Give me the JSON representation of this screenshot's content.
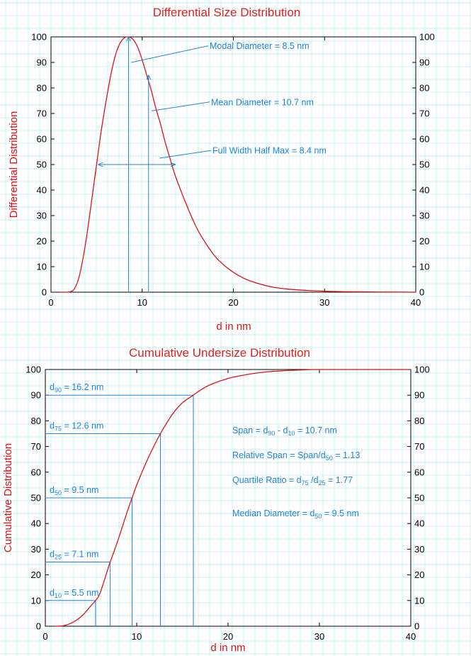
{
  "colors": {
    "curve": "#dd1111",
    "annotation": "#1c84e0",
    "grid": "#b8ecf2",
    "axis": "#000000",
    "title": "#e0201a"
  },
  "chart_data": [
    {
      "type": "line",
      "title_parts": [
        "Differential",
        " Size Distribution"
      ],
      "xlabel": "d in nm",
      "ylabel": "Differential Distribution",
      "xlim": [
        0,
        40
      ],
      "ylim": [
        0,
        100
      ],
      "x_ticks": [
        "0",
        "10",
        "20",
        "30",
        "40"
      ],
      "y_ticks": [
        "0",
        "10",
        "20",
        "30",
        "40",
        "50",
        "60",
        "70",
        "80",
        "90",
        "100"
      ],
      "grid": true,
      "series": [
        {
          "x": [
            1,
            1.5,
            2,
            2.5,
            3,
            3.5,
            4,
            4.5,
            5,
            5.5,
            6,
            6.5,
            7,
            7.5,
            8,
            8.5,
            9,
            9.5,
            10,
            10.5,
            11,
            11.5,
            12,
            12.5,
            13,
            13.5,
            14,
            15,
            16,
            17,
            18,
            19,
            20,
            21,
            22,
            24,
            26,
            28,
            30,
            32,
            35,
            38,
            40
          ],
          "y": [
            0,
            0,
            0.1,
            1,
            5,
            13,
            24,
            37,
            50,
            63,
            74,
            84,
            92,
            97,
            99.5,
            100,
            99,
            96,
            91,
            85,
            79,
            72,
            66,
            59,
            53,
            47,
            42,
            33,
            25,
            19,
            14,
            10.5,
            7.8,
            5.7,
            4.2,
            2.2,
            1.2,
            0.7,
            0.4,
            0.2,
            0.1,
            0.05,
            0
          ]
        }
      ],
      "annotations": [
        {
          "label": "Modal Diameter = 8.5 nm",
          "x": 8.5,
          "arrow_to_y": 100
        },
        {
          "label": "Mean Diameter = 10.7 nm",
          "x": 10.7,
          "arrow_to_y": 85
        },
        {
          "label": "Full Width Half Max = 8.4 nm",
          "from_x": 5.2,
          "to_x": 13.6,
          "at_y": 50
        }
      ]
    },
    {
      "type": "line",
      "title": "Cumulative Undersize Distribution",
      "xlabel": "d in nm",
      "ylabel": "Cumulative Distribution",
      "xlim": [
        0,
        40
      ],
      "ylim": [
        0,
        100
      ],
      "x_ticks": [
        "0",
        "10",
        "20",
        "30",
        "40"
      ],
      "y_ticks": [
        "0",
        "10",
        "20",
        "30",
        "40",
        "50",
        "60",
        "70",
        "80",
        "90",
        "100"
      ],
      "grid": true,
      "series": [
        {
          "x": [
            1,
            2,
            3,
            4,
            5,
            5.5,
            6,
            7,
            7.1,
            8,
            9,
            9.5,
            10,
            11,
            12,
            12.6,
            13,
            14,
            15,
            16.2,
            17,
            18,
            20,
            22,
            24,
            26,
            28,
            30,
            35,
            40
          ],
          "y": [
            0,
            0.2,
            1.5,
            4,
            8,
            10,
            13,
            24,
            25,
            34,
            45,
            50,
            55,
            63.5,
            71,
            75,
            77.5,
            83,
            87,
            90,
            92,
            94,
            96.5,
            98,
            99,
            99.5,
            99.8,
            100,
            100,
            100
          ]
        }
      ],
      "percentiles": [
        {
          "sub": "90",
          "label": " = 16.2 nm",
          "d": 16.2,
          "p": 90
        },
        {
          "sub": "75",
          "label": " = 12.6 nm",
          "d": 12.6,
          "p": 75
        },
        {
          "sub": "50",
          "label": " = 9.5 nm",
          "d": 9.5,
          "p": 50
        },
        {
          "sub": "25",
          "label": " = 7.1 nm",
          "d": 7.1,
          "p": 25
        },
        {
          "sub": "10",
          "label": " = 5.5 nm",
          "d": 5.5,
          "p": 10
        }
      ],
      "stats": {
        "span": {
          "a": "Span = d",
          "s1": "90",
          "b": " - d",
          "s2": "10",
          "c": " = 10.7 nm"
        },
        "relative_span": {
          "a": "Relative Span = Span/d",
          "s1": "50",
          "b": " = 1.13"
        },
        "quartile_ratio": {
          "a": "Quartile Ratio = d",
          "s1": "75",
          "b": " /d",
          "s2": "25",
          "c": " = 1.77"
        },
        "median": {
          "a": "Median Diameter = d",
          "s1": "50",
          "b": " = 9.5 nm"
        }
      }
    }
  ]
}
